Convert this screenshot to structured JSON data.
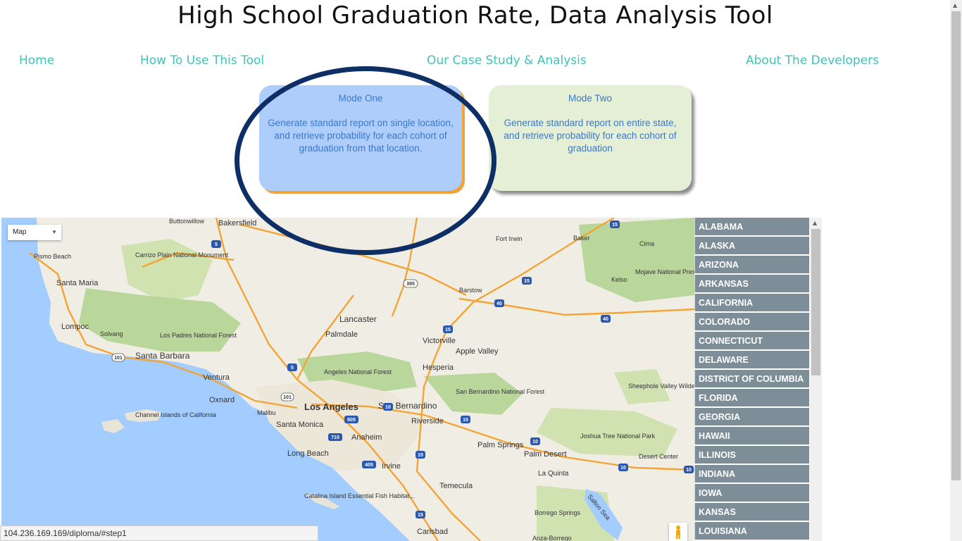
{
  "page": {
    "title": "High School Graduation Rate, Data Analysis Tool"
  },
  "nav": [
    {
      "label": "Home"
    },
    {
      "label": "How To Use This Tool"
    },
    {
      "label": "Our Case Study & Analysis"
    },
    {
      "label": "About The Developers"
    }
  ],
  "modes": {
    "one": {
      "title": "Mode One",
      "description": "Generate standard report on single location, and retrieve probability for each cohort of graduation from that location."
    },
    "two": {
      "title": "Mode Two",
      "description": "Generate standard report on entire state, and retrieve probability for each cohort of graduation"
    }
  },
  "map": {
    "type_label": "Map",
    "places": {
      "buttonwillow": "Buttonwillow",
      "bakersfield": "Bakersfield",
      "pismo": "Pismo Beach",
      "carrizo": "Carrizo Plain National Monument",
      "santa_maria": "Santa Maria",
      "lompoc": "Lompoc",
      "solvang": "Solvang",
      "los_padres": "Los Padres National Forest",
      "santa_barbara": "Santa Barbara",
      "ventura": "Ventura",
      "oxnard": "Oxnard",
      "malibu": "Malibu",
      "channel": "Channel Islands of California",
      "lancaster": "Lancaster",
      "palmdale": "Palmdale",
      "angeles": "Angeles National Forest",
      "los_angeles": "Los Angeles",
      "santa_monica": "Santa Monica",
      "long_beach": "Long Beach",
      "anaheim": "Anaheim",
      "irvine": "Irvine",
      "catalina": "Catalina Island Essential Fish Habitat...",
      "victorville": "Victorville",
      "apple_valley": "Apple Valley",
      "hesperia": "Hesperia",
      "sb_nf": "San Bernardino National Forest",
      "san_bernardino": "San Bernardino",
      "riverside": "Riverside",
      "temecula": "Temecula",
      "carlsbad": "Carlsbad",
      "palm_springs": "Palm Springs",
      "palm_desert": "Palm Desert",
      "la_quinta": "La Quinta",
      "joshua_tree": "Joshua Tree National Park",
      "sheephole": "Sheephole Valley Wilderness",
      "desert_center": "Desert Center",
      "borrego": "Borrego Springs",
      "anza": "Anza-Borrego",
      "salton": "Salton Sea",
      "fort_irwin": "Fort Irwin",
      "baker": "Baker",
      "cima": "Cima",
      "kelso": "Kelso",
      "mojave": "Mojave National Preserve",
      "barstow": "Barstow"
    },
    "shields": {
      "i5a": "5",
      "i5b": "5",
      "i15a": "15",
      "i15b": "15",
      "i15c": "15",
      "i15d": "15",
      "i15e": "15",
      "i40a": "40",
      "i40b": "40",
      "i10a": "10",
      "i10b": "10",
      "i10c": "10",
      "i10d": "10",
      "i10e": "10",
      "us395": "395",
      "us101a": "101",
      "us101b": "101",
      "i605": "605",
      "i710": "710",
      "i405": "405"
    }
  },
  "states": [
    "ALABAMA",
    "ALASKA",
    "ARIZONA",
    "ARKANSAS",
    "CALIFORNIA",
    "COLORADO",
    "CONNECTICUT",
    "DELAWARE",
    "DISTRICT OF COLUMBIA",
    "FLORIDA",
    "GEORGIA",
    "HAWAII",
    "ILLINOIS",
    "INDIANA",
    "IOWA",
    "KANSAS",
    "LOUISIANA"
  ],
  "status_bar": {
    "url": "104.236.169.169/diploma/#step1"
  },
  "colors": {
    "nav": "#3fc3b8",
    "mode_one_bg": "#aecdfb",
    "mode_two_bg": "#e5efd5",
    "state_bg": "#7d8e99",
    "annotation_circle": "#0e2f66"
  }
}
